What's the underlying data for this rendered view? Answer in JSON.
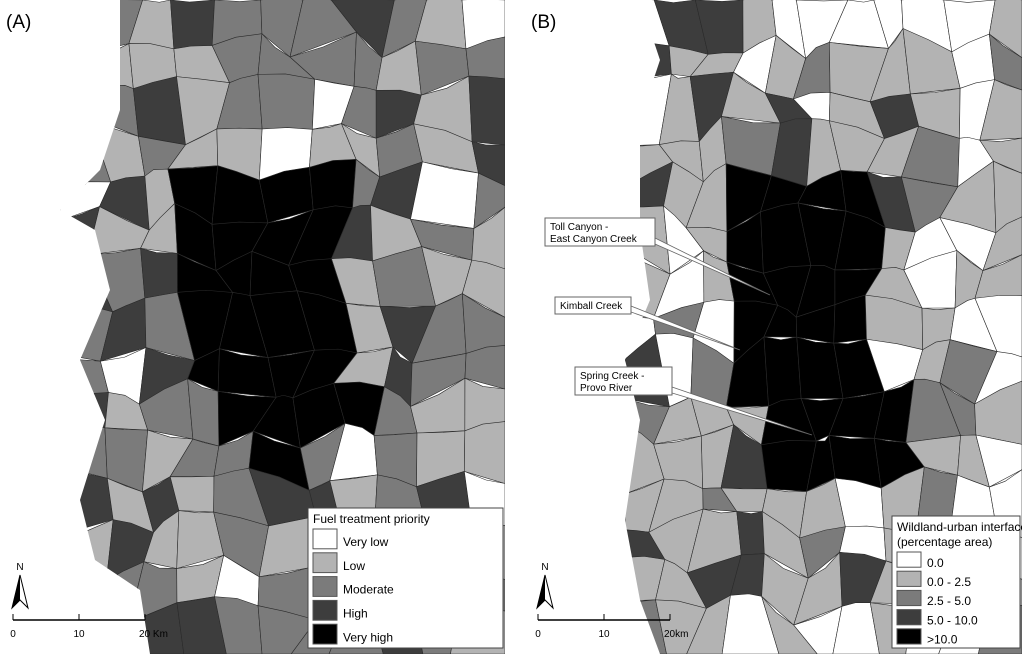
{
  "panels": [
    {
      "label": "(A)",
      "legend": {
        "title": "Fuel treatment priority",
        "items": [
          "Very low",
          "Low",
          "Moderate",
          "High",
          "Very high"
        ],
        "colors": [
          "#ffffff",
          "#b3b3b3",
          "#7b7b7b",
          "#3d3d3d",
          "#000000"
        ]
      },
      "north": "N",
      "scale": [
        "0",
        "10",
        "20 Km"
      ]
    },
    {
      "label": "(B)",
      "legend": {
        "title": "Wildland-urban interface",
        "subtitle": "(percentage area)",
        "items": [
          "0.0",
          "0.0 - 2.5",
          "2.5 - 5.0",
          "5.0 - 10.0",
          ">10.0"
        ],
        "colors": [
          "#ffffff",
          "#b3b3b3",
          "#7b7b7b",
          "#3d3d3d",
          "#000000"
        ]
      },
      "north": "N",
      "scale": [
        "0",
        "10",
        "20km"
      ],
      "callouts": [
        [
          "Toll Canyon -",
          "East Canyon Creek"
        ],
        [
          "Kimball Creek"
        ],
        [
          "Spring Creek -",
          "Provo River"
        ]
      ]
    }
  ]
}
